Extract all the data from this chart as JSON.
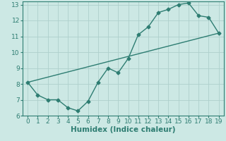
{
  "title": "",
  "xlabel": "Humidex (Indice chaleur)",
  "ylabel": "",
  "xlim": [
    -0.5,
    19.5
  ],
  "ylim": [
    6,
    13.2
  ],
  "yticks": [
    6,
    7,
    8,
    9,
    10,
    11,
    12,
    13
  ],
  "xticks": [
    0,
    1,
    2,
    3,
    4,
    5,
    6,
    7,
    8,
    9,
    10,
    11,
    12,
    13,
    14,
    15,
    16,
    17,
    18,
    19
  ],
  "curve_x": [
    0,
    1,
    2,
    3,
    4,
    5,
    6,
    7,
    8,
    9,
    10,
    11,
    12,
    13,
    14,
    15,
    16,
    17,
    18,
    19
  ],
  "curve_y": [
    8.1,
    7.3,
    7.0,
    7.0,
    6.5,
    6.3,
    6.9,
    8.1,
    9.0,
    8.7,
    9.6,
    11.1,
    11.6,
    12.5,
    12.7,
    13.0,
    13.1,
    12.3,
    12.2,
    11.2
  ],
  "line_x": [
    0,
    19
  ],
  "line_y": [
    8.1,
    11.2
  ],
  "color": "#2e7d72",
  "bg_color": "#cce8e4",
  "grid_color": "#aed0cc",
  "marker": "D",
  "marker_size": 2.5,
  "linewidth": 1.0,
  "xlabel_fontsize": 7.5,
  "tick_fontsize": 6.5
}
